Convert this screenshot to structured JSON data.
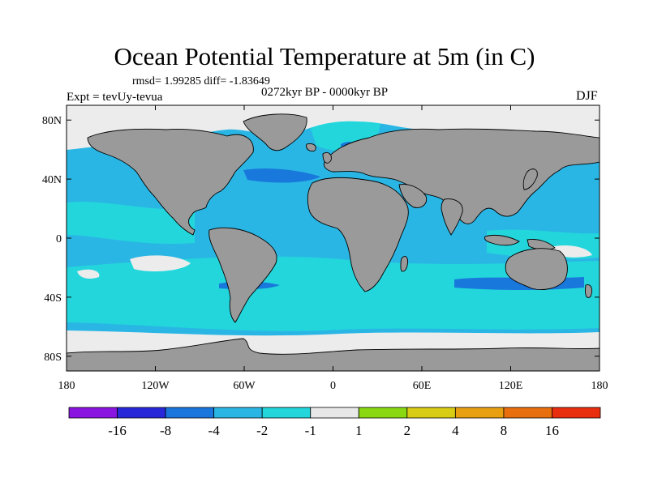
{
  "map": {
    "title": "Ocean Potential Temperature at 5m (in C)",
    "stats": "rmsd= 1.99285 diff= -1.83649",
    "experiment": "Expt = tevUy-tevua",
    "period": "0272kyr BP - 0000kyr BP",
    "season": "DJF",
    "lon_ticks": [
      {
        "lon": -180,
        "label": "180"
      },
      {
        "lon": -120,
        "label": "120W"
      },
      {
        "lon": -60,
        "label": "60W"
      },
      {
        "lon": 0,
        "label": "0"
      },
      {
        "lon": 60,
        "label": "60E"
      },
      {
        "lon": 120,
        "label": "120E"
      },
      {
        "lon": 180,
        "label": "180"
      }
    ],
    "lat_ticks": [
      {
        "lat": 80,
        "label": "80N"
      },
      {
        "lat": 40,
        "label": "40N"
      },
      {
        "lat": 0,
        "label": "0"
      },
      {
        "lat": -40,
        "label": "40S"
      },
      {
        "lat": -80,
        "label": "80S"
      }
    ],
    "colors": {
      "land": "#9a9a9a",
      "ocean_main": "#2ab6e4",
      "ocean_cyan": "#22d6dc",
      "ocean_dark": "#1978dc",
      "near_zero": "#ececec",
      "coast": "#000000"
    }
  },
  "colorbar": {
    "boxes": [
      {
        "color": "#8a14e0"
      },
      {
        "color": "#2828d8"
      },
      {
        "color": "#1a76dc"
      },
      {
        "color": "#2ab6e4"
      },
      {
        "color": "#22d6dc"
      },
      {
        "color": "#e8e8e8"
      },
      {
        "color": "#8ad812"
      },
      {
        "color": "#d8cc14"
      },
      {
        "color": "#e8a010"
      },
      {
        "color": "#e86e0e"
      },
      {
        "color": "#e82e0e"
      }
    ],
    "labels": [
      "-16",
      "-8",
      "-4",
      "-2",
      "-1",
      "1",
      "2",
      "4",
      "8",
      "16"
    ]
  }
}
